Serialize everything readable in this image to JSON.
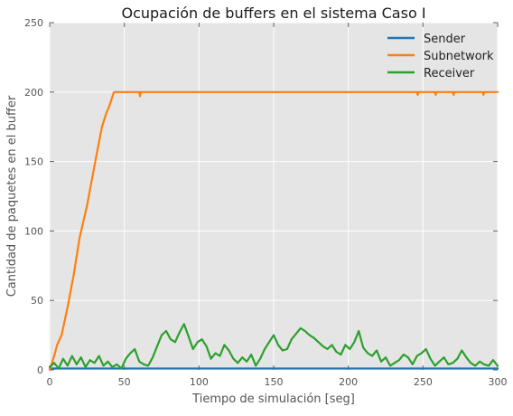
{
  "chart_data": {
    "type": "line",
    "title": "Ocupación de buffers en el sistema Caso I",
    "xlabel": "Tiempo de simulación [seg]",
    "ylabel": "Cantidad de paquetes en el buffer",
    "xlim": [
      0,
      300
    ],
    "ylim": [
      0,
      250
    ],
    "xticks": [
      0,
      50,
      100,
      150,
      200,
      250,
      300
    ],
    "yticks": [
      0,
      50,
      100,
      150,
      200,
      250
    ],
    "grid": true,
    "legend_position": "top-right",
    "series": [
      {
        "name": "Sender",
        "color": "#1f77b4",
        "x": [
          0,
          300
        ],
        "y": [
          1,
          1
        ]
      },
      {
        "name": "Subnetwork",
        "color": "#ff7f0e",
        "x": [
          0,
          3,
          5,
          8,
          12,
          16,
          20,
          25,
          30,
          35,
          38,
          40,
          43,
          60,
          60.5,
          61,
          100,
          150,
          200,
          246,
          246.5,
          247,
          258,
          258.5,
          259,
          270,
          270.5,
          271,
          290,
          290.5,
          291,
          300
        ],
        "y": [
          0,
          10,
          18,
          25,
          45,
          68,
          95,
          118,
          147,
          175,
          185,
          190,
          200,
          200,
          197,
          200,
          200,
          200,
          200,
          200,
          198,
          200,
          200,
          198,
          200,
          200,
          198,
          200,
          200,
          198,
          200,
          200
        ]
      },
      {
        "name": "Receiver",
        "color": "#2ca02c",
        "x": [
          0,
          3,
          6,
          9,
          12,
          15,
          18,
          21,
          24,
          27,
          30,
          33,
          36,
          39,
          42,
          45,
          48,
          51,
          54,
          57,
          60,
          63,
          66,
          69,
          72,
          75,
          78,
          81,
          84,
          87,
          90,
          93,
          96,
          99,
          102,
          105,
          108,
          111,
          114,
          117,
          120,
          123,
          126,
          129,
          132,
          135,
          138,
          141,
          144,
          147,
          150,
          153,
          156,
          159,
          162,
          165,
          168,
          171,
          174,
          177,
          180,
          183,
          186,
          189,
          192,
          195,
          198,
          201,
          204,
          207,
          210,
          213,
          216,
          219,
          222,
          225,
          228,
          231,
          234,
          237,
          240,
          243,
          246,
          249,
          252,
          255,
          258,
          261,
          264,
          267,
          270,
          273,
          276,
          279,
          282,
          285,
          288,
          291,
          294,
          297,
          300
        ],
        "y": [
          2,
          5,
          1,
          8,
          3,
          10,
          4,
          9,
          2,
          7,
          5,
          10,
          3,
          6,
          2,
          4,
          1,
          8,
          12,
          15,
          6,
          4,
          3,
          9,
          17,
          25,
          28,
          22,
          20,
          27,
          33,
          24,
          15,
          20,
          22,
          17,
          8,
          12,
          10,
          18,
          14,
          8,
          5,
          9,
          6,
          11,
          3,
          8,
          15,
          20,
          25,
          18,
          14,
          15,
          22,
          26,
          30,
          28,
          25,
          23,
          20,
          17,
          15,
          18,
          13,
          11,
          18,
          15,
          20,
          28,
          16,
          12,
          10,
          14,
          6,
          9,
          3,
          5,
          7,
          11,
          9,
          4,
          10,
          12,
          15,
          8,
          3,
          6,
          9,
          4,
          5,
          8,
          14,
          9,
          5,
          3,
          6,
          4,
          3,
          7,
          3
        ]
      }
    ]
  }
}
